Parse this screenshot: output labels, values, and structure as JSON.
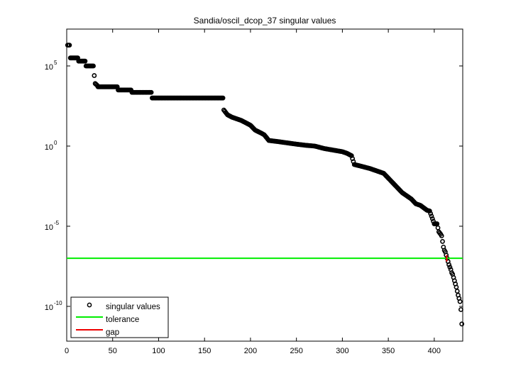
{
  "chart_data": {
    "type": "scatter",
    "title": "Sandia/oscil_dcop_37 singular values",
    "xlabel": "",
    "ylabel": "",
    "xscale": "linear",
    "yscale": "log",
    "xlim": [
      0,
      431
    ],
    "ylim_log10": [
      -12.17,
      7.3
    ],
    "grid": false,
    "legend_position": "lower left",
    "x_ticks": [
      0,
      50,
      100,
      150,
      200,
      250,
      300,
      350,
      400
    ],
    "x_tick_labels": [
      "0",
      "50",
      "100",
      "150",
      "200",
      "250",
      "300",
      "350",
      "400"
    ],
    "y_ticks_log10": [
      5,
      0,
      -5,
      -10
    ],
    "y_tick_labels": [
      {
        "base": "10",
        "exp": "5"
      },
      {
        "base": "10",
        "exp": "0"
      },
      {
        "base": "10",
        "exp": "-5"
      },
      {
        "base": "10",
        "exp": "-10"
      }
    ],
    "legend": [
      {
        "label": "singular values",
        "style": "marker-circle",
        "color": "#000000"
      },
      {
        "label": "tolerance",
        "style": "line",
        "color": "#00ee00"
      },
      {
        "label": "gap",
        "style": "line",
        "color": "#ee0000"
      }
    ],
    "series": [
      {
        "name": "singular values",
        "marker": "o",
        "color": "#000000",
        "note": "values given as log10(sigma) at sampled indices; plateaus represented by start/end indices",
        "points": [
          [
            1,
            6.3
          ],
          [
            3,
            6.3
          ],
          [
            4,
            5.5
          ],
          [
            12,
            5.5
          ],
          [
            13,
            5.3
          ],
          [
            20,
            5.3
          ],
          [
            21,
            5.0
          ],
          [
            29,
            5.0
          ],
          [
            30,
            4.4
          ],
          [
            31,
            3.9
          ],
          [
            33,
            3.8
          ],
          [
            34,
            3.7
          ],
          [
            55,
            3.7
          ],
          [
            56,
            3.5
          ],
          [
            70,
            3.5
          ],
          [
            71,
            3.35
          ],
          [
            92,
            3.35
          ],
          [
            93,
            3.0
          ],
          [
            170,
            3.0
          ],
          [
            171,
            2.25
          ],
          [
            173,
            2.1
          ],
          [
            175,
            1.95
          ],
          [
            180,
            1.8
          ],
          [
            190,
            1.6
          ],
          [
            200,
            1.3
          ],
          [
            205,
            1.0
          ],
          [
            212,
            0.8
          ],
          [
            215,
            0.7
          ],
          [
            220,
            0.35
          ],
          [
            230,
            0.28
          ],
          [
            240,
            0.2
          ],
          [
            250,
            0.12
          ],
          [
            260,
            0.05
          ],
          [
            270,
            0.0
          ],
          [
            280,
            -0.15
          ],
          [
            290,
            -0.25
          ],
          [
            300,
            -0.35
          ],
          [
            305,
            -0.45
          ],
          [
            310,
            -0.6
          ],
          [
            313,
            -1.15
          ],
          [
            320,
            -1.25
          ],
          [
            330,
            -1.4
          ],
          [
            340,
            -1.6
          ],
          [
            345,
            -1.7
          ],
          [
            350,
            -2.0
          ],
          [
            355,
            -2.3
          ],
          [
            360,
            -2.6
          ],
          [
            365,
            -2.9
          ],
          [
            370,
            -3.1
          ],
          [
            375,
            -3.3
          ],
          [
            380,
            -3.6
          ],
          [
            385,
            -3.7
          ],
          [
            392,
            -4.0
          ],
          [
            395,
            -4.05
          ],
          [
            400,
            -4.85
          ],
          [
            403,
            -4.85
          ],
          [
            405,
            -5.35
          ],
          [
            407,
            -5.5
          ],
          [
            408,
            -5.6
          ],
          [
            410,
            -6.3
          ],
          [
            411,
            -6.5
          ],
          [
            412,
            -6.6
          ],
          [
            413,
            -6.8
          ],
          [
            414,
            -7.0
          ],
          [
            415,
            -7.2
          ],
          [
            416,
            -7.4
          ],
          [
            417,
            -7.55
          ],
          [
            418,
            -7.7
          ],
          [
            419,
            -7.9
          ],
          [
            420,
            -8.0
          ],
          [
            421,
            -8.2
          ],
          [
            422,
            -8.4
          ],
          [
            424,
            -8.8
          ],
          [
            426,
            -9.3
          ],
          [
            427,
            -9.5
          ],
          [
            428,
            -9.7
          ],
          [
            429,
            -10.2
          ],
          [
            430,
            -11.1
          ]
        ]
      },
      {
        "name": "tolerance",
        "type": "hline",
        "color": "#00ee00",
        "y_log10": -7.0
      },
      {
        "name": "gap",
        "type": "vline-segment",
        "color": "#ee0000",
        "x": 413.5,
        "y_log10_range": [
          -7.2,
          -6.8
        ]
      }
    ]
  }
}
